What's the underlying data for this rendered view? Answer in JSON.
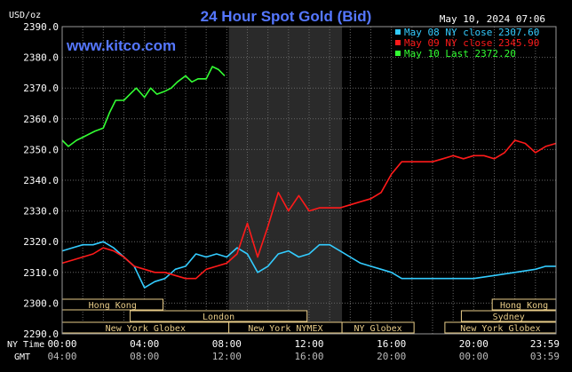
{
  "chart_data": {
    "type": "line",
    "title": "24 Hour Spot Gold (Bid)",
    "ylabel": "USD/oz",
    "ylim": [
      2290,
      2390
    ],
    "yticks": [
      2290,
      2300,
      2310,
      2320,
      2330,
      2340,
      2350,
      2360,
      2370,
      2380,
      2390
    ],
    "ytick_labels": [
      "2290.0",
      "2300.0",
      "2310.0",
      "2320.0",
      "2330.0",
      "2340.0",
      "2350.0",
      "2360.0",
      "2370.0",
      "2380.0",
      "2390.0"
    ],
    "xlim": [
      0,
      24
    ],
    "xticks": [
      0,
      4,
      8,
      12,
      16,
      20,
      24
    ],
    "xtick_labels_ny": [
      "00:00",
      "04:00",
      "08:00",
      "12:00",
      "16:00",
      "20:00",
      "23:59"
    ],
    "xtick_labels_gmt": [
      "04:00",
      "08:00",
      "12:00",
      "16:00",
      "20:00",
      "00:00",
      "03:59"
    ],
    "xaxis_row_labels": {
      "ny": "NY Time",
      "gmt": "GMT"
    },
    "grid": true,
    "legend_position": "top-right",
    "timestamp": "May 10, 2024 07:06",
    "website": "www.kitco.com",
    "shaded_region": {
      "x_start": 8.1,
      "x_end": 13.6
    },
    "series": [
      {
        "name": "May 08 NY close 2307.60",
        "color": "#33ccff",
        "points": [
          [
            0,
            2317
          ],
          [
            0.5,
            2318
          ],
          [
            1,
            2319
          ],
          [
            1.5,
            2319
          ],
          [
            2,
            2320
          ],
          [
            2.5,
            2318
          ],
          [
            3,
            2315
          ],
          [
            3.5,
            2312
          ],
          [
            4,
            2305
          ],
          [
            4.5,
            2307
          ],
          [
            5,
            2308
          ],
          [
            5.5,
            2311
          ],
          [
            6,
            2312
          ],
          [
            6.5,
            2316
          ],
          [
            7,
            2315
          ],
          [
            7.5,
            2316
          ],
          [
            8,
            2315
          ],
          [
            8.5,
            2318
          ],
          [
            9,
            2316
          ],
          [
            9.5,
            2310
          ],
          [
            10,
            2312
          ],
          [
            10.5,
            2316
          ],
          [
            11,
            2317
          ],
          [
            11.5,
            2315
          ],
          [
            12,
            2316
          ],
          [
            12.5,
            2319
          ],
          [
            13,
            2319
          ],
          [
            13.5,
            2317
          ],
          [
            14,
            2315
          ],
          [
            14.5,
            2313
          ],
          [
            15,
            2312
          ],
          [
            15.5,
            2311
          ],
          [
            16,
            2310
          ],
          [
            16.5,
            2308
          ],
          [
            17,
            2308
          ],
          [
            18,
            2308
          ],
          [
            19,
            2308
          ],
          [
            20,
            2308
          ],
          [
            21,
            2309
          ],
          [
            22,
            2310
          ],
          [
            23,
            2311
          ],
          [
            23.5,
            2312
          ],
          [
            24,
            2312
          ]
        ]
      },
      {
        "name": "May 09 NY close 2345.90",
        "color": "#ff1a1a",
        "points": [
          [
            0,
            2313
          ],
          [
            0.5,
            2314
          ],
          [
            1,
            2315
          ],
          [
            1.5,
            2316
          ],
          [
            2,
            2318
          ],
          [
            2.5,
            2317
          ],
          [
            3,
            2315
          ],
          [
            3.5,
            2312
          ],
          [
            4,
            2311
          ],
          [
            4.5,
            2310
          ],
          [
            5,
            2310
          ],
          [
            5.5,
            2309
          ],
          [
            6,
            2308
          ],
          [
            6.5,
            2308
          ],
          [
            7,
            2311
          ],
          [
            7.5,
            2312
          ],
          [
            8,
            2313
          ],
          [
            8.5,
            2316
          ],
          [
            9,
            2326
          ],
          [
            9.5,
            2315
          ],
          [
            10,
            2325
          ],
          [
            10.5,
            2336
          ],
          [
            11,
            2330
          ],
          [
            11.5,
            2335
          ],
          [
            12,
            2330
          ],
          [
            12.5,
            2331
          ],
          [
            13,
            2331
          ],
          [
            13.5,
            2331
          ],
          [
            14,
            2332
          ],
          [
            14.5,
            2333
          ],
          [
            15,
            2334
          ],
          [
            15.5,
            2336
          ],
          [
            16,
            2342
          ],
          [
            16.5,
            2346
          ],
          [
            17,
            2346
          ],
          [
            17.5,
            2346
          ],
          [
            18,
            2346
          ],
          [
            18.5,
            2347
          ],
          [
            19,
            2348
          ],
          [
            19.5,
            2347
          ],
          [
            20,
            2348
          ],
          [
            20.5,
            2348
          ],
          [
            21,
            2347
          ],
          [
            21.5,
            2349
          ],
          [
            22,
            2353
          ],
          [
            22.5,
            2352
          ],
          [
            23,
            2349
          ],
          [
            23.5,
            2351
          ],
          [
            24,
            2352
          ]
        ]
      },
      {
        "name": "May 10 Last 2372.20",
        "color": "#33ff33",
        "points": [
          [
            0,
            2353
          ],
          [
            0.3,
            2351
          ],
          [
            0.7,
            2353
          ],
          [
            1,
            2354
          ],
          [
            1.3,
            2355
          ],
          [
            1.6,
            2356
          ],
          [
            2,
            2357
          ],
          [
            2.3,
            2362
          ],
          [
            2.6,
            2366
          ],
          [
            3,
            2366
          ],
          [
            3.3,
            2368
          ],
          [
            3.6,
            2370
          ],
          [
            4,
            2367
          ],
          [
            4.3,
            2370
          ],
          [
            4.6,
            2368
          ],
          [
            5,
            2369
          ],
          [
            5.3,
            2370
          ],
          [
            5.6,
            2372
          ],
          [
            6,
            2374
          ],
          [
            6.3,
            2372
          ],
          [
            6.6,
            2373
          ],
          [
            7,
            2373
          ],
          [
            7.3,
            2377
          ],
          [
            7.6,
            2376
          ],
          [
            7.9,
            2374
          ]
        ]
      }
    ],
    "sessions": [
      {
        "label": "Hong Kong",
        "start": 0,
        "end": 4.9
      },
      {
        "label": "London",
        "start": 3.3,
        "end": 11.9
      },
      {
        "label": "New York Globex",
        "start": 0,
        "end": 8.1
      },
      {
        "label": "New York NYMEX",
        "start": 8.1,
        "end": 13.6
      },
      {
        "label": "NY Globex",
        "start": 13.6,
        "end": 17.1
      },
      {
        "label": "Hong Kong",
        "start": 20.9,
        "end": 24
      },
      {
        "label": "Sydney",
        "start": 19.4,
        "end": 24
      },
      {
        "label": "New York Globex",
        "start": 18.6,
        "end": 24
      }
    ]
  },
  "colors": {
    "title": "#5577ff",
    "axis_text": "#ffffff",
    "grid": "#666666",
    "session_fill": "#e8cc88",
    "session_text": "#000000",
    "shade": "#2a2a2a"
  }
}
